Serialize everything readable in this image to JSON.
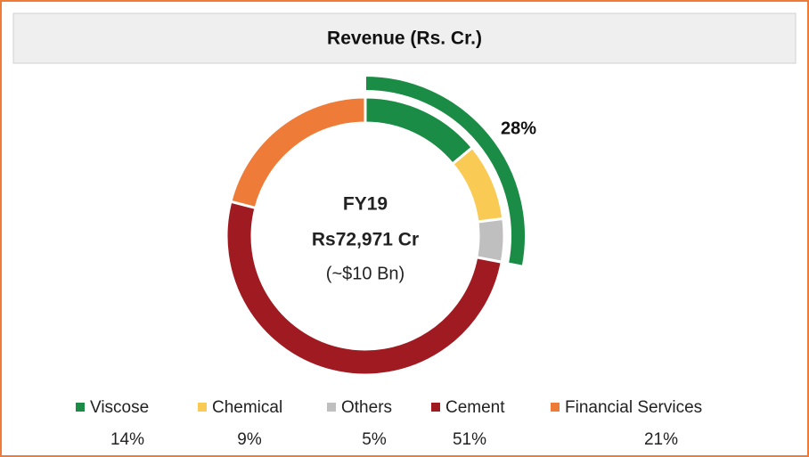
{
  "chart_data": {
    "type": "donut",
    "title": "Revenue (Rs. Cr.)",
    "categories": [
      "Viscose",
      "Chemical",
      "Others",
      "Cement",
      "Financial Services"
    ],
    "values": [
      14,
      9,
      5,
      51,
      21
    ],
    "value_labels": [
      "14%",
      "9%",
      "5%",
      "51%",
      "21%"
    ],
    "colors": [
      "#1a8c45",
      "#f9cb55",
      "#bfbfbf",
      "#a01b21",
      "#ee7b38"
    ],
    "center_text": [
      "FY19",
      "Rs72,971 Cr",
      "(~$10 Bn)"
    ],
    "outer_arc": {
      "value": 28,
      "label": "28%",
      "color": "#1a8c45"
    }
  }
}
